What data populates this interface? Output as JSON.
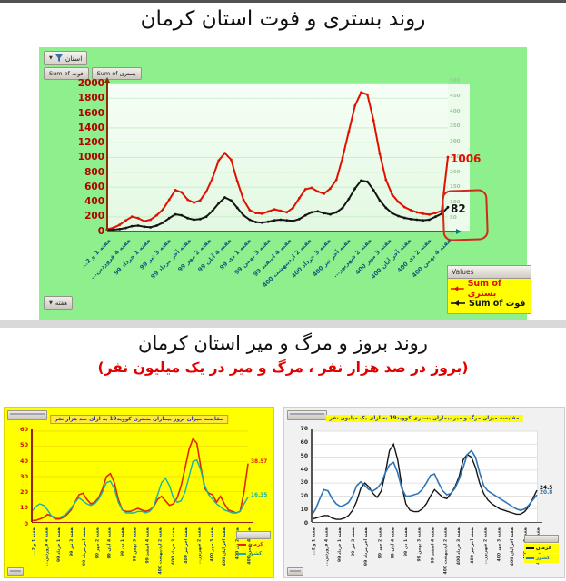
{
  "section1": {
    "title": "روند بستری و فوت استان کرمان",
    "filter_label": "استان",
    "field_deaths": "Sum of فوت",
    "field_admissions": "Sum of بستری",
    "week_label": "هفته",
    "legend_header": "Values"
  },
  "section2": {
    "title": "روند بروز و مرگ و میر استان کرمان",
    "subtitle": "(بروز در صد هزار نفر ، مرگ و میر در یک میلیون نفر)"
  },
  "colors": {
    "panel_green": "#8df08d",
    "panel_yellow": "#ffff00",
    "admissions_red": "#e01000",
    "deaths_black": "#141414",
    "country_teal": "#17b3a6",
    "country_blue": "#2e75b6",
    "axis_dark_red": "#8b2e00",
    "axis_teal": "#00807a",
    "tick_red": "#b40000",
    "highlight_box_red": "#cf2a1b"
  },
  "chart_data": [
    {
      "type": "line",
      "title": "روند بستری و فوت استان کرمان",
      "legend_header": "Values",
      "legend_position": "bottom-right",
      "grid": true,
      "left_axis": {
        "min": 0,
        "max": 2000,
        "step": 200
      },
      "right_axis": {
        "min": 0,
        "max": 500,
        "step": 50
      },
      "categories": [
        "هفته 1 و 2...",
        "هفته 4 فروردین...",
        "هفته 1 خرداد 99",
        "هفته 3 تیر 99",
        "هفته آخر مرداد 99",
        "هفته 2 مهر 99",
        "هفته 4 آبان 99",
        "هفته 1 دی 99",
        "هفته 3 بهمن 99",
        "هفته 4 اسفند 99",
        "هفته 2 اردیبهشت 400",
        "هفته 3 خرداد 400",
        "هفته آخر تیر 400",
        "هفته 2 شهریور...",
        "هفته 3 مهر 400",
        "هفته آخر آبان 400",
        "هفته 2 دی 400",
        "هفته 4 بهمن 400"
      ],
      "series": [
        {
          "name": "Sum of بستری",
          "color": "#e01000",
          "axis": "left",
          "width": 2,
          "markers": true,
          "end_label": "1006",
          "values": [
            30,
            50,
            90,
            150,
            200,
            180,
            140,
            160,
            220,
            300,
            430,
            560,
            530,
            430,
            390,
            420,
            540,
            720,
            960,
            1060,
            970,
            680,
            430,
            290,
            250,
            240,
            270,
            300,
            280,
            260,
            320,
            450,
            570,
            590,
            540,
            510,
            580,
            700,
            1000,
            1350,
            1700,
            1880,
            1850,
            1500,
            1050,
            700,
            500,
            400,
            330,
            290,
            260,
            240,
            230,
            250,
            280,
            1006
          ]
        },
        {
          "name": "Sum of فوت",
          "color": "#141414",
          "axis": "right",
          "width": 2,
          "markers": true,
          "end_label": "82",
          "values": [
            5,
            6,
            8,
            12,
            18,
            20,
            16,
            14,
            20,
            30,
            45,
            58,
            55,
            45,
            40,
            42,
            50,
            70,
            95,
            115,
            105,
            80,
            55,
            40,
            32,
            30,
            33,
            38,
            40,
            38,
            36,
            42,
            55,
            65,
            68,
            62,
            58,
            65,
            80,
            110,
            145,
            172,
            168,
            140,
            105,
            80,
            62,
            52,
            46,
            42,
            40,
            38,
            40,
            50,
            60,
            82
          ]
        }
      ]
    },
    {
      "type": "line",
      "title": "مقایسه میزان بروز بیماران بستری کووید19 به ازای صد هزار نفر",
      "grid": true,
      "left_axis": {
        "min": 0,
        "max": 60,
        "step": 10
      },
      "categories": [
        "هفته 1 و 2...",
        "هفته 4 فروردین...",
        "هفته 1 خرداد 99",
        "هفته 3 تیر 99",
        "هفته آخر مرداد 99",
        "هفته 2 مهر 99",
        "هفته 4 آبان 99",
        "هفته 1 دی 99",
        "هفته 3 بهمن 99",
        "هفته 4 اسفند 99",
        "هفته 2 اردیبهشت 400",
        "هفته 3 خرداد 400",
        "هفته آخر تیر 400",
        "هفته 2 شهریور...",
        "هفته 3 مهر 400",
        "هفته آخر آبان 400",
        "هفته 2 دی 400",
        "هفته 4 بهمن 400"
      ],
      "series": [
        {
          "name": "کرمان",
          "color": "#e02800",
          "width": 1.6,
          "end_label": "38.57",
          "values": [
            1,
            1,
            2,
            3,
            5,
            4,
            2,
            2,
            3,
            5,
            8,
            13,
            18,
            19,
            15,
            12,
            13,
            16,
            22,
            30,
            32,
            26,
            15,
            8,
            7,
            7,
            8,
            9,
            8,
            7,
            8,
            10,
            15,
            17,
            14,
            11,
            12,
            16,
            24,
            36,
            48,
            55,
            52,
            36,
            22,
            19,
            18,
            13,
            17,
            12,
            8,
            7,
            6,
            7,
            20,
            38.57
          ]
        },
        {
          "name": "کشور",
          "color": "#17b3a6",
          "width": 1.4,
          "end_label": "16.35",
          "values": [
            7,
            10,
            12,
            11,
            8,
            4,
            3,
            3,
            4,
            6,
            9,
            13,
            16,
            14,
            12,
            11,
            12,
            15,
            20,
            26,
            27,
            22,
            13,
            8,
            6,
            6,
            6,
            7,
            7,
            6,
            7,
            10,
            18,
            26,
            29,
            24,
            16,
            13,
            14,
            20,
            30,
            40,
            41,
            34,
            24,
            18,
            15,
            12,
            10,
            8,
            7,
            6,
            6,
            7,
            12,
            16.35
          ]
        }
      ]
    },
    {
      "type": "line",
      "title": "مقایسه میزان مرگ و میر بیماران بستری کووید19 به ازای یک میلیون نفر",
      "grid": true,
      "left_axis": {
        "min": 0,
        "max": 70,
        "step": 10
      },
      "categories": [
        "هفته 1 و 2...",
        "هفته 4 فروردین...",
        "هفته 1 خرداد 99",
        "هفته 3 تیر 99",
        "هفته آخر مرداد 99",
        "هفته 2 مهر 99",
        "هفته 4 آبان 99",
        "هفته 1 دی 99",
        "هفته 3 بهمن 99",
        "هفته 4 اسفند 99",
        "هفته 2 اردیبهشت 400",
        "هفته 3 خرداد 400",
        "هفته آخر تیر 400",
        "هفته 2 شهریور...",
        "هفته 3 مهر 400",
        "هفته آخر آبان 400",
        "هفته 2 دی 400",
        "هفته 4 بهمن 400"
      ],
      "series": [
        {
          "name": "کرمان",
          "color": "#141414",
          "width": 1.4,
          "end_label": "24.5",
          "values": [
            2,
            3,
            4,
            5,
            5,
            3,
            2,
            2,
            3,
            5,
            9,
            16,
            26,
            30,
            27,
            22,
            19,
            24,
            38,
            55,
            60,
            48,
            28,
            14,
            9,
            8,
            8,
            10,
            14,
            20,
            25,
            22,
            19,
            18,
            22,
            27,
            35,
            48,
            52,
            50,
            42,
            30,
            22,
            17,
            14,
            12,
            10,
            9,
            8,
            7,
            6,
            6,
            8,
            12,
            18,
            24.5
          ]
        },
        {
          "name": "کشور",
          "color": "#2e75b6",
          "width": 1.6,
          "end_label": "20.8",
          "values": [
            5,
            10,
            18,
            25,
            24,
            18,
            14,
            12,
            13,
            15,
            20,
            28,
            31,
            28,
            25,
            24,
            26,
            30,
            38,
            44,
            46,
            38,
            26,
            20,
            20,
            21,
            22,
            25,
            30,
            36,
            37,
            30,
            24,
            21,
            22,
            26,
            33,
            42,
            52,
            55,
            50,
            38,
            28,
            24,
            22,
            20,
            18,
            16,
            14,
            12,
            10,
            9,
            10,
            13,
            17,
            20.8
          ]
        }
      ]
    }
  ]
}
